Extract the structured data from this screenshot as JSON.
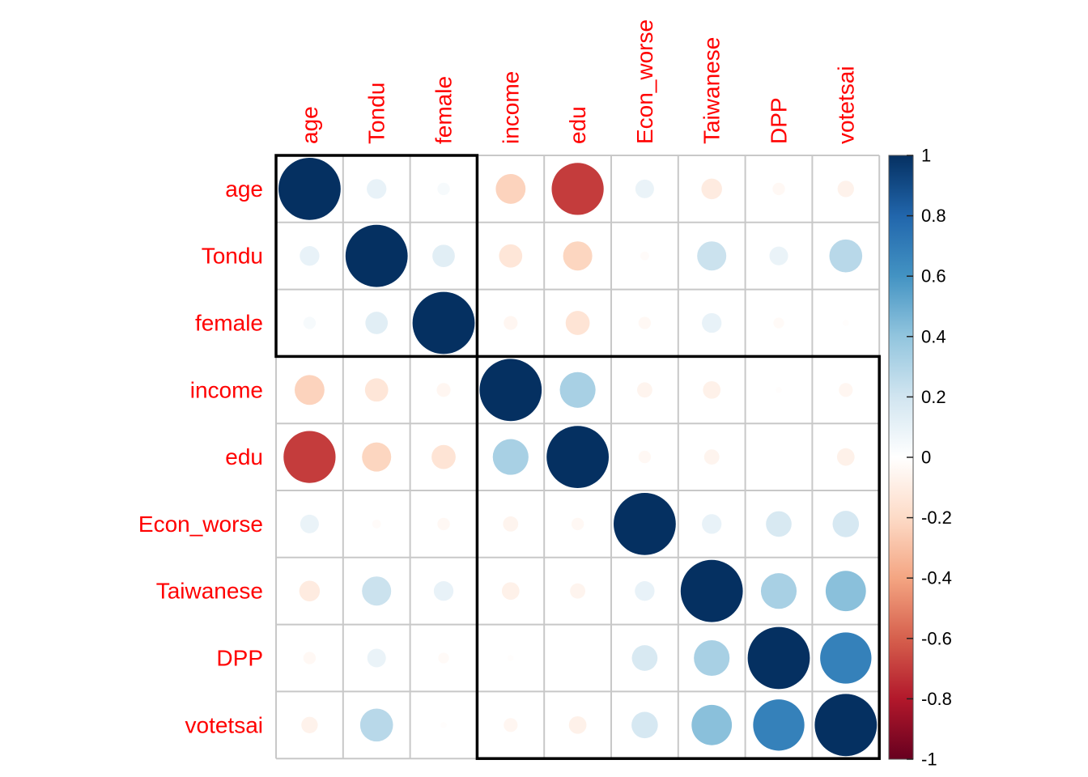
{
  "chart_data": {
    "type": "heatmap",
    "variables": [
      "age",
      "Tondu",
      "female",
      "income",
      "edu",
      "Econ_worse",
      "Taiwanese",
      "DPP",
      "votetsai"
    ],
    "matrix": [
      [
        1.0,
        0.1,
        0.04,
        -0.23,
        -0.7,
        0.09,
        -0.11,
        -0.04,
        -0.07
      ],
      [
        0.1,
        1.0,
        0.13,
        -0.14,
        -0.22,
        -0.02,
        0.22,
        0.09,
        0.28
      ],
      [
        0.04,
        0.13,
        1.0,
        -0.05,
        -0.15,
        -0.04,
        0.1,
        -0.03,
        -0.01
      ],
      [
        -0.23,
        -0.14,
        -0.05,
        1.0,
        0.33,
        -0.06,
        -0.08,
        -0.01,
        -0.05
      ],
      [
        -0.7,
        -0.22,
        -0.15,
        0.33,
        1.0,
        -0.04,
        -0.06,
        0.0,
        -0.08
      ],
      [
        0.09,
        -0.02,
        -0.04,
        -0.06,
        -0.04,
        1.0,
        0.1,
        0.17,
        0.18
      ],
      [
        -0.11,
        0.22,
        0.1,
        -0.08,
        -0.06,
        0.1,
        1.0,
        0.33,
        0.42
      ],
      [
        -0.04,
        0.09,
        -0.03,
        -0.01,
        0.0,
        0.17,
        0.33,
        1.0,
        0.68
      ],
      [
        -0.07,
        0.28,
        -0.01,
        -0.05,
        -0.08,
        0.18,
        0.42,
        0.68,
        1.0
      ]
    ],
    "clusters": [
      [
        0,
        2
      ],
      [
        3,
        8
      ]
    ],
    "colorbar": {
      "ticks": [
        1,
        0.8,
        0.6,
        0.4,
        0.2,
        0,
        -0.2,
        -0.4,
        -0.6,
        -0.8,
        -1
      ],
      "tick_labels": [
        "1",
        "0.8",
        "0.6",
        "0.4",
        "0.2",
        "0",
        "-0.2",
        "-0.4",
        "-0.6",
        "-0.8",
        "-1"
      ],
      "range": [
        -1,
        1
      ]
    },
    "colors": {
      "label": "#ff0000",
      "grid": "#c8c8c8",
      "cluster_border": "#000000",
      "scale": [
        "#67001f",
        "#b2182b",
        "#d6604d",
        "#f4a582",
        "#fddbc7",
        "#ffffff",
        "#d1e5f0",
        "#92c5de",
        "#4393c3",
        "#2166ac",
        "#053061"
      ]
    }
  }
}
